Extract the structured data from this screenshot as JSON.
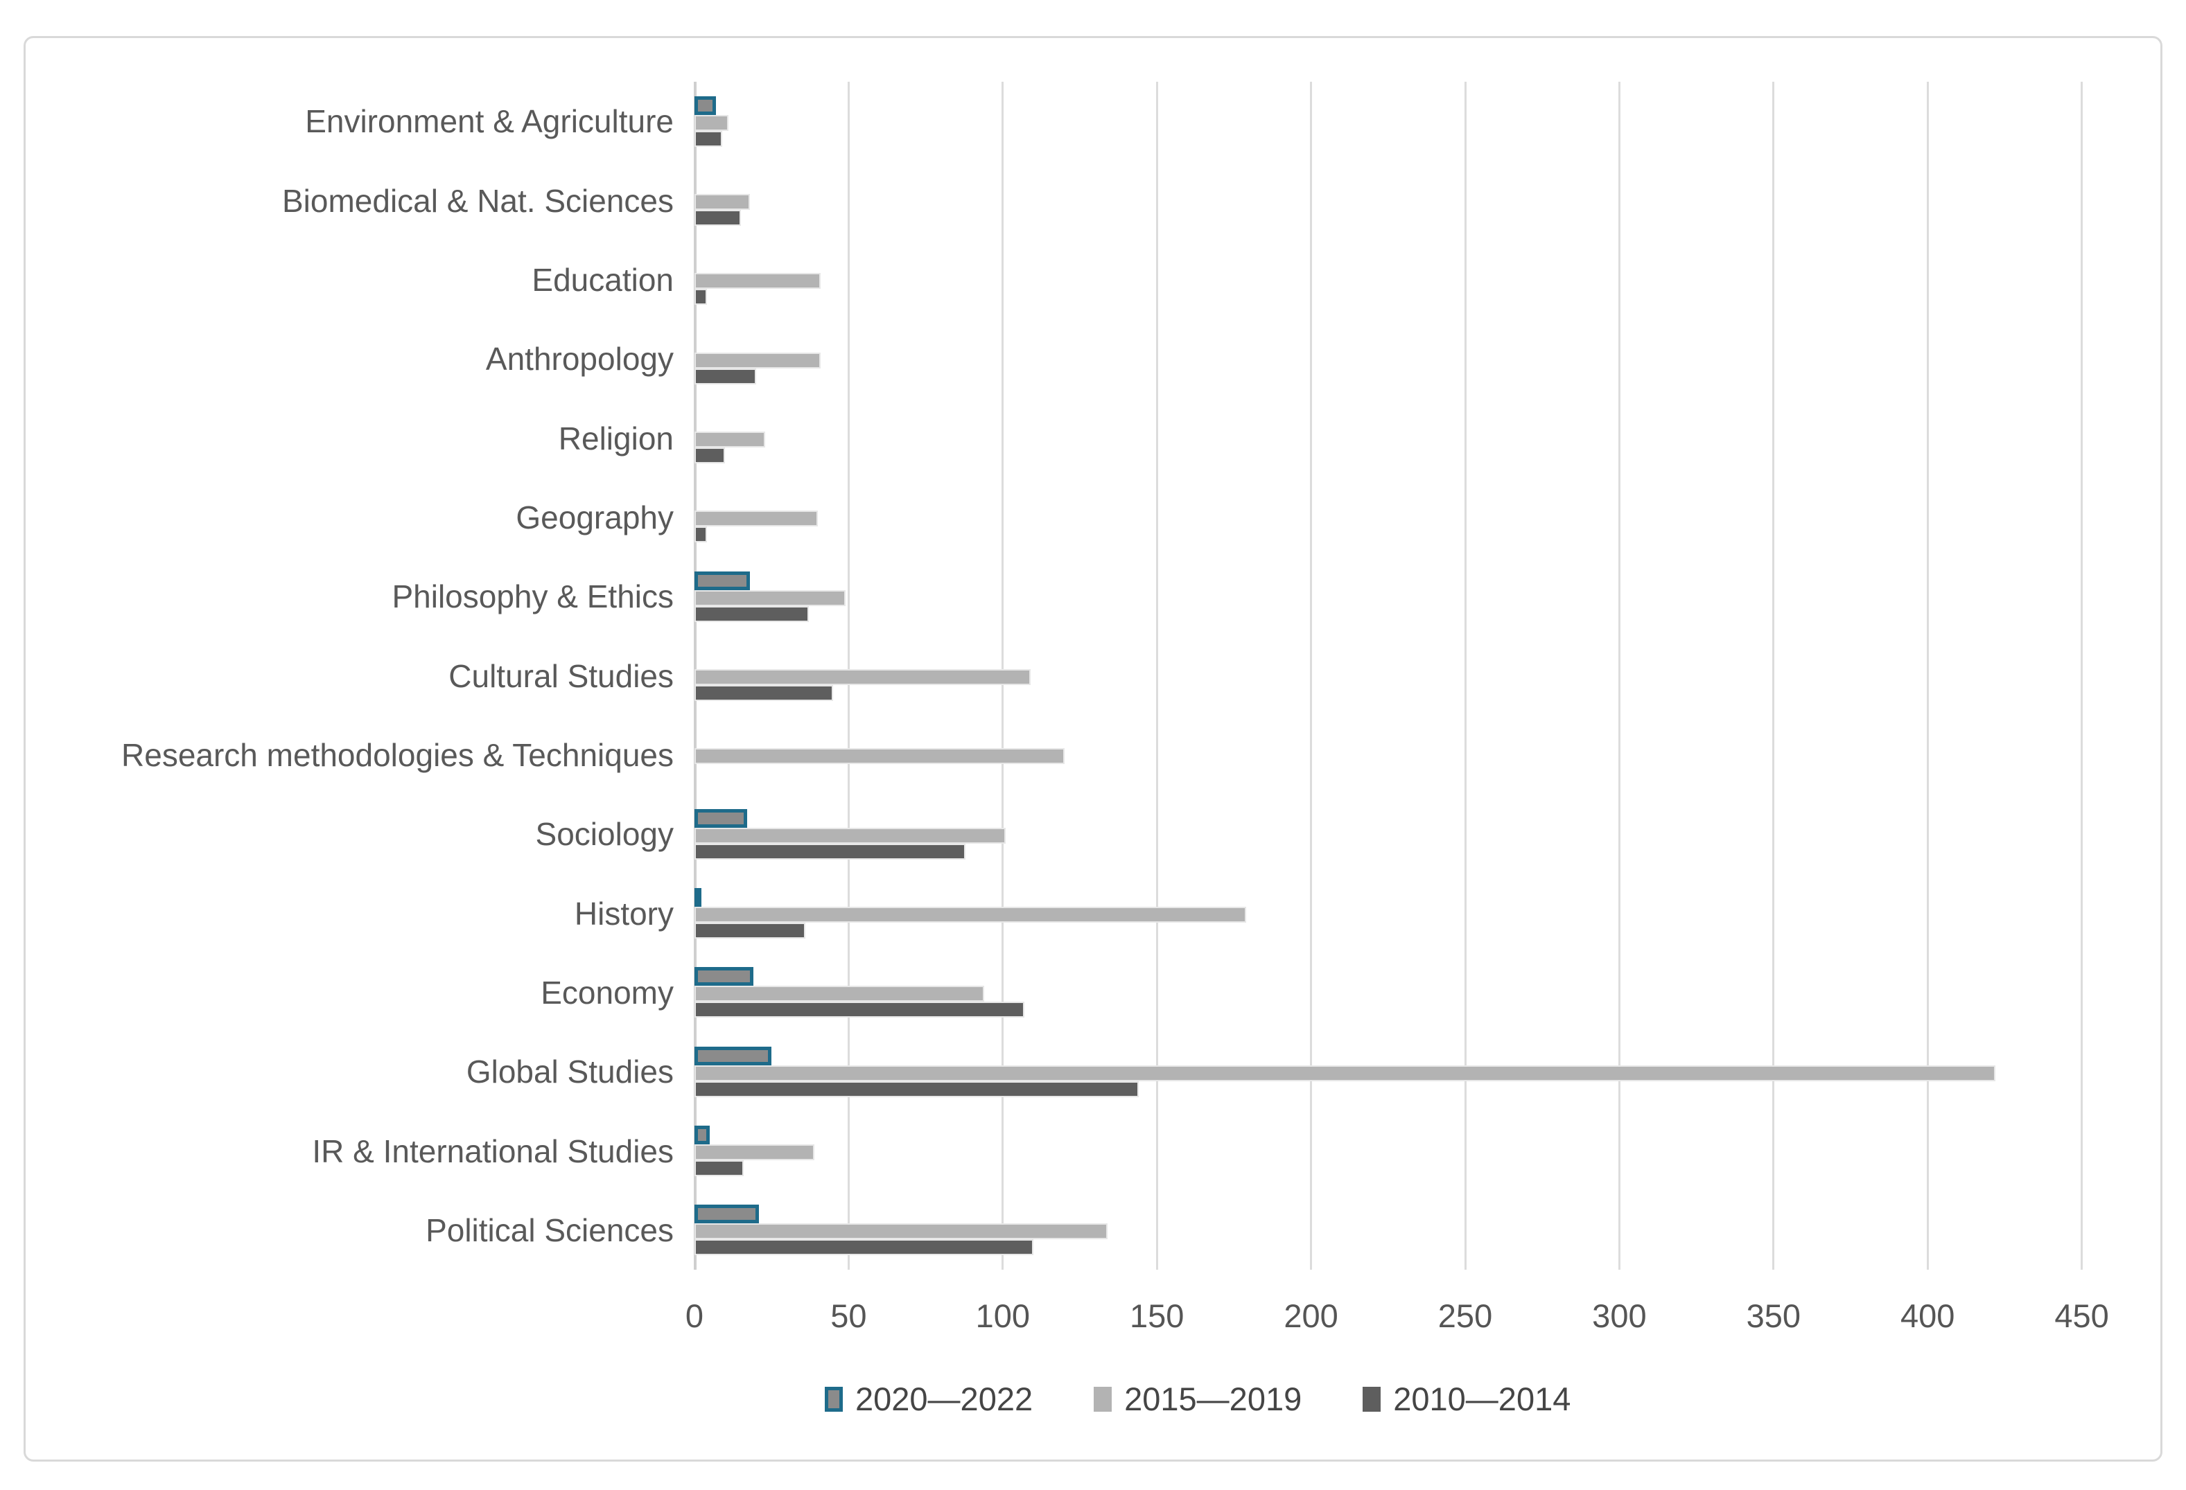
{
  "chart_data": {
    "type": "bar",
    "orientation": "horizontal",
    "title": "",
    "xlabel": "",
    "ylabel": "",
    "grid": true,
    "legend_position": "bottom",
    "xlim": [
      0,
      475
    ],
    "x_ticks": [
      0,
      50,
      100,
      150,
      200,
      250,
      300,
      350,
      400,
      450
    ],
    "categories": [
      "Environment & Agriculture",
      "Biomedical & Nat. Sciences",
      "Education",
      "Anthropology",
      "Religion",
      "Geography",
      "Philosophy & Ethics",
      "Cultural Studies",
      "Research methodologies & Techniques",
      "Sociology",
      "History",
      "Economy",
      "Global Studies",
      "IR & International Studies",
      "Political Sciences"
    ],
    "series": [
      {
        "name": "2020—2022",
        "values": [
          7,
          0,
          0,
          0,
          0,
          0,
          18,
          0,
          0,
          17,
          2,
          19,
          25,
          5,
          21
        ],
        "fill_color": "#8b8b8b",
        "border_color": "#1e6b8a"
      },
      {
        "name": "2015—2019",
        "values": [
          11,
          18,
          41,
          41,
          23,
          40,
          49,
          109,
          120,
          101,
          179,
          94,
          422,
          39,
          134
        ],
        "fill_color": "#b3b3b3",
        "border_color": ""
      },
      {
        "name": "2010—2014",
        "values": [
          9,
          15,
          4,
          20,
          10,
          4,
          37,
          45,
          0,
          88,
          36,
          107,
          144,
          16,
          110
        ],
        "fill_color": "#5e5e5e",
        "border_color": ""
      }
    ]
  },
  "colors": {
    "frame_border": "#d9d9d9",
    "gridline": "#dcdcdc",
    "axis_line": "#cfcfcf",
    "category_text": "#595959",
    "tick_text": "#555555",
    "legend_text": "#454545",
    "background": "#ffffff"
  }
}
